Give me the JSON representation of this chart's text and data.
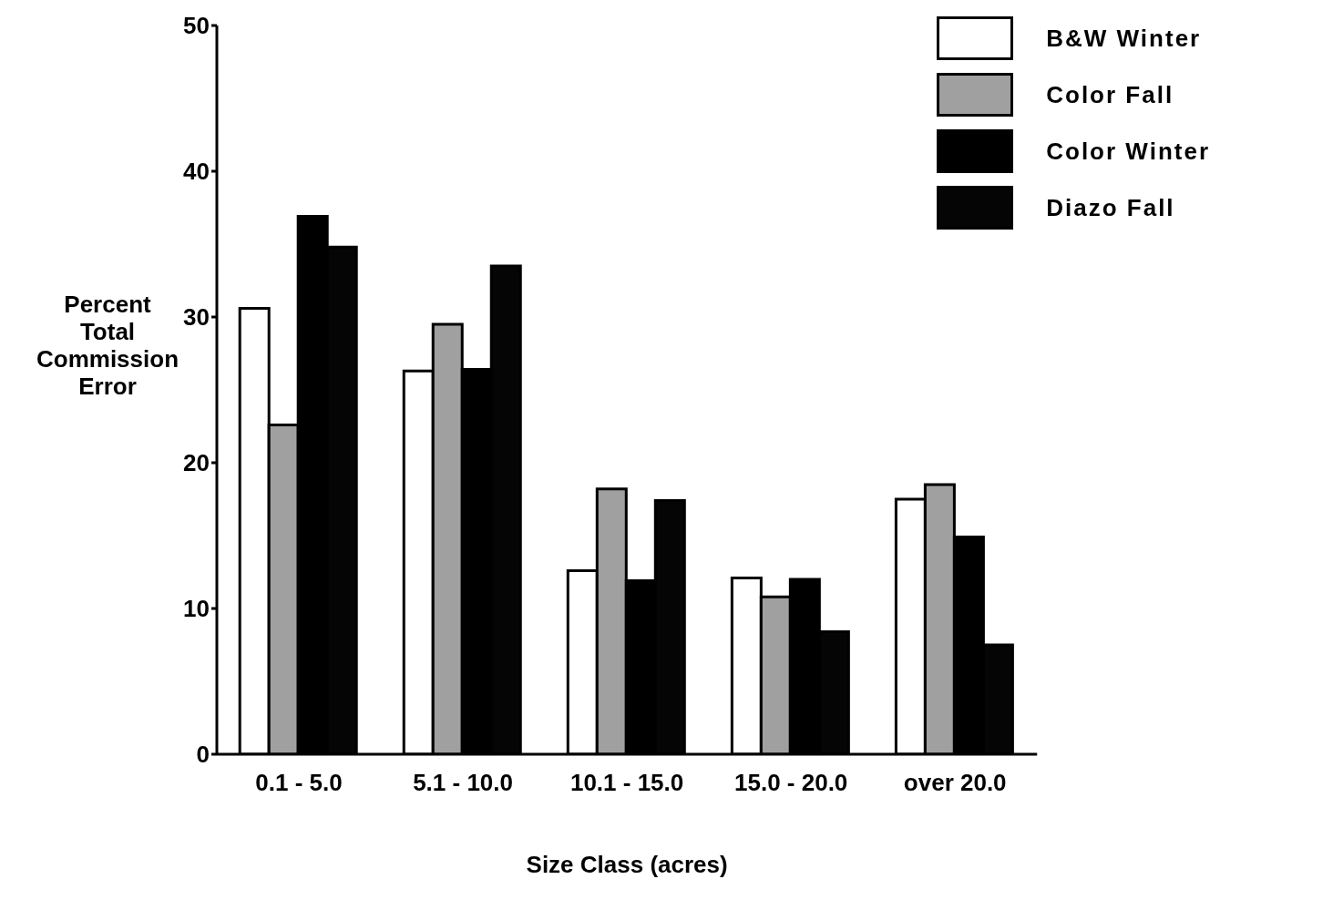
{
  "chart_data": {
    "type": "bar",
    "xlabel": "Size Class (acres)",
    "ylabel": "Percent Total Commission Error",
    "categories": [
      "0.1 - 5.0",
      "5.1 - 10.0",
      "10.1 - 15.0",
      "15.0 - 20.0",
      "over 20.0"
    ],
    "series": [
      {
        "name": "B&W Winter",
        "color": "#ffffff",
        "values": [
          30.6,
          26.3,
          12.6,
          12.1,
          17.5
        ]
      },
      {
        "name": "Color Fall",
        "color": "#a0a0a0",
        "values": [
          22.6,
          29.5,
          18.2,
          10.8,
          18.5
        ]
      },
      {
        "name": "Color Winter",
        "color": "#000000",
        "values": [
          36.9,
          26.4,
          11.9,
          12.0,
          14.9
        ]
      },
      {
        "name": "Diazo Fall",
        "color": "#050505",
        "values": [
          34.8,
          33.5,
          17.4,
          8.4,
          7.5
        ]
      }
    ],
    "ylim": [
      0,
      50
    ],
    "yticks": [
      0,
      10,
      20,
      30,
      40,
      50
    ],
    "grid": false,
    "legend": "top right"
  }
}
